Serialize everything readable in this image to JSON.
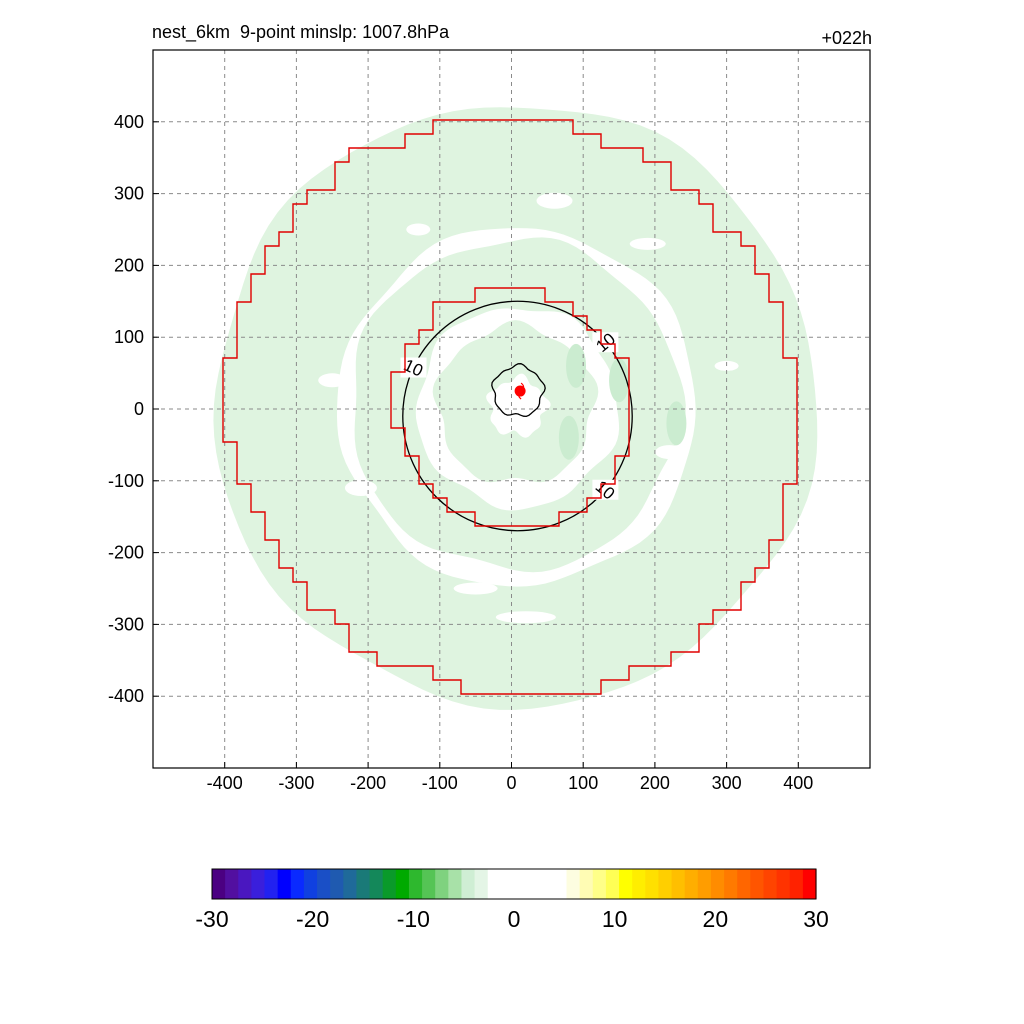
{
  "header": {
    "title": "nest_6km  9-point minslp: 1007.8hPa",
    "forecast_hour": "+022h"
  },
  "chart_data": {
    "type": "contour",
    "title": "nest_6km  9-point minslp: 1007.8hPa",
    "forecast_hour": "+022h",
    "xlim": [
      -500,
      500
    ],
    "ylim": [
      -500,
      500
    ],
    "xticks": [
      -400,
      -300,
      -200,
      -100,
      0,
      100,
      200,
      300,
      400
    ],
    "yticks": [
      -400,
      -300,
      -200,
      -100,
      0,
      100,
      200,
      300,
      400
    ],
    "grid": true,
    "storm_center": {
      "x": 12,
      "y": 25
    },
    "contours": [
      {
        "level": 10,
        "shape": "small loop around the center",
        "approx_radius": 35
      },
      {
        "level": 10,
        "shape": "closed ring",
        "approx_radius": 160,
        "labels": [
          "10",
          "10",
          "10"
        ]
      }
    ],
    "red_outlines": [
      {
        "shape": "stepped circle",
        "approx_radius": 165
      },
      {
        "shape": "stepped circle",
        "approx_radius": 400
      }
    ],
    "shading": {
      "color_note": "light green (about -2 to -5) in rings",
      "rings": [
        {
          "inner_radius": 40,
          "outer_radius": 110
        },
        {
          "inner_radius": 140,
          "outer_radius": 230
        },
        {
          "inner_radius": 250,
          "outer_radius": 420
        }
      ]
    },
    "colorbar": {
      "min": -30,
      "max": 30,
      "ticks": [
        -30,
        -20,
        -10,
        0,
        10,
        20,
        30
      ],
      "colors": [
        "#4b0082",
        "#520fa0",
        "#4a17c0",
        "#3a1fdc",
        "#2222f0",
        "#0000ff",
        "#0a2aff",
        "#1040e0",
        "#1a4fc6",
        "#1f5ab0",
        "#1f6a9a",
        "#1a7a78",
        "#14885a",
        "#0a9a2a",
        "#00aa00",
        "#2eb82e",
        "#55c455",
        "#7fd27f",
        "#a8e1a8",
        "#cfeed4",
        "#e4f5e6",
        "#ffffff",
        "#ffffff",
        "#ffffff",
        "#ffffff",
        "#ffffff",
        "#ffffff",
        "#fdfde0",
        "#fffcb4",
        "#ffff88",
        "#ffff55",
        "#ffff00",
        "#ffee00",
        "#ffe000",
        "#ffcf00",
        "#ffbf00",
        "#ffae00",
        "#ff9d00",
        "#ff8c00",
        "#ff7a00",
        "#ff6600",
        "#ff5500",
        "#ff4400",
        "#ff3300",
        "#ff2200",
        "#ff0000"
      ]
    }
  }
}
